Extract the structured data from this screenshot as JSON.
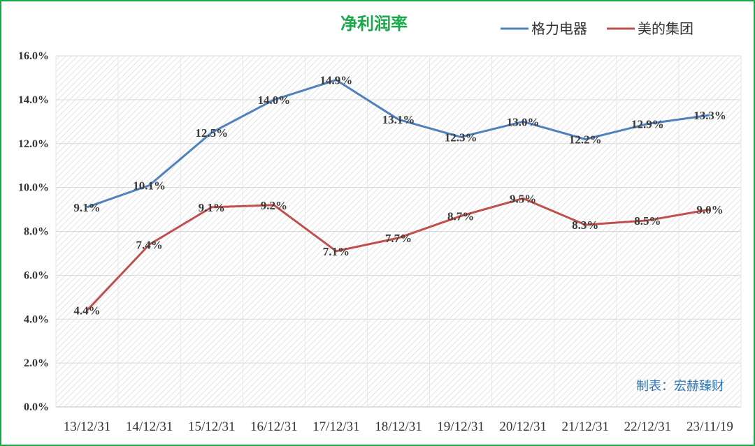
{
  "chart_data": {
    "type": "line",
    "title": "净利润率",
    "categories": [
      "13/12/31",
      "14/12/31",
      "15/12/31",
      "16/12/31",
      "17/12/31",
      "18/12/31",
      "19/12/31",
      "20/12/31",
      "21/12/31",
      "22/12/31",
      "23/11/19"
    ],
    "series": [
      {
        "name": "格力电器",
        "color": "#4f81bd",
        "values": [
          9.1,
          10.1,
          12.5,
          14.0,
          14.9,
          13.1,
          12.3,
          13.0,
          12.2,
          12.9,
          13.3
        ]
      },
      {
        "name": "美的集团",
        "color": "#c0504d",
        "values": [
          4.4,
          7.4,
          9.1,
          9.2,
          7.1,
          7.7,
          8.7,
          9.5,
          8.3,
          8.5,
          9.0
        ]
      }
    ],
    "ylim": [
      0,
      16
    ],
    "yticks": [
      0,
      2,
      4,
      6,
      8,
      10,
      12,
      14,
      16
    ],
    "y_format": "percent_1dp",
    "grid": true,
    "legend": "top-right",
    "title_color": "#1aa84a"
  },
  "credit": {
    "text": "制表：宏赫臻财",
    "color": "#2e75b6"
  }
}
